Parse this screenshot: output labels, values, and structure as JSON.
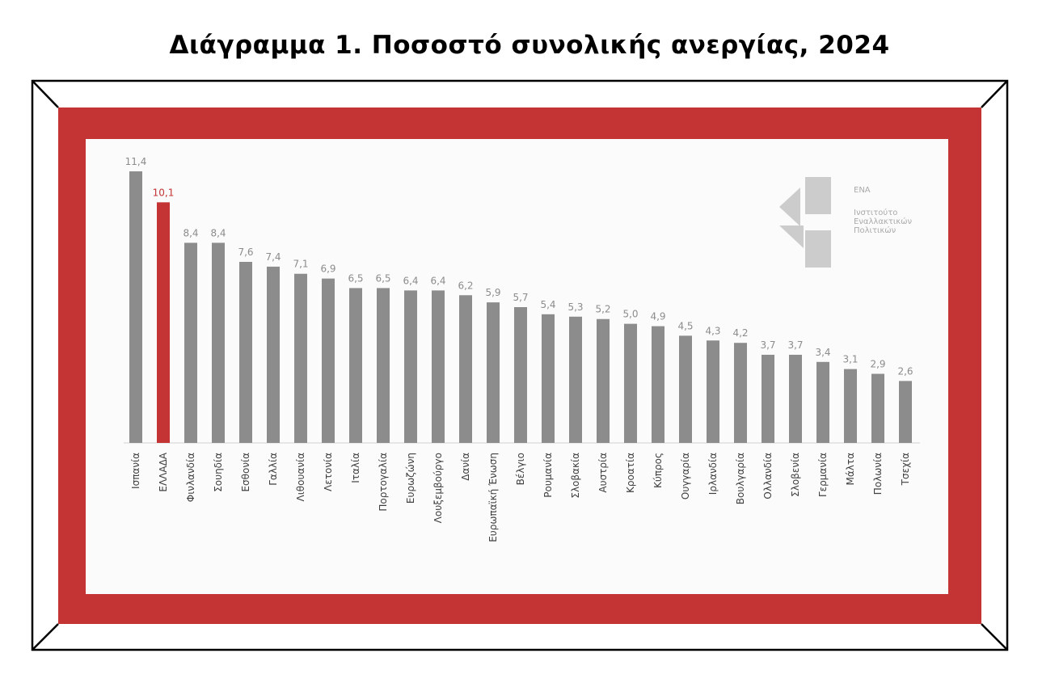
{
  "title": "Διάγραμμα 1. Ποσοστό συνολικής ανεργίας, 2024",
  "colors": {
    "frame_red": "#c43434",
    "bar_default": "#8c8c8c",
    "bar_highlight": "#c43434",
    "label_default": "#8c8c8c",
    "label_highlight": "#c43434",
    "logo": "#cccccc"
  },
  "logo": {
    "icon": "ena-logo-icon",
    "brand": "ΕΝΑ",
    "line1": "Ινστιτούτο",
    "line2": "Εναλλακτικών",
    "line3": "Πολιτικών"
  },
  "chart_data": {
    "type": "bar",
    "highlight": "ΕΛΛΑΔΑ",
    "ylim": [
      0,
      11.4
    ],
    "categories": [
      "Ισπανία",
      "ΕΛΛΑΔΑ",
      "Φινλανδία",
      "Σουηδία",
      "Εσθονία",
      "Γαλλία",
      "Λιθουανία",
      "Λετονία",
      "Ιταλία",
      "Πορτογαλία",
      "Ευρωζώνη",
      "Λουξεμβούργο",
      "Δανία",
      "Ευρωπαϊκή Ένωση",
      "Βέλγιο",
      "Ρουμανία",
      "Σλοβακία",
      "Αυστρία",
      "Κροατία",
      "Κύπρος",
      "Ουγγαρία",
      "Ιρλανδία",
      "Βουλγαρία",
      "Ολλανδία",
      "Σλοβενία",
      "Γερμανία",
      "Μάλτα",
      "Πολωνία",
      "Τσεχία"
    ],
    "values": [
      11.4,
      10.1,
      8.4,
      8.4,
      7.6,
      7.4,
      7.1,
      6.9,
      6.5,
      6.5,
      6.4,
      6.4,
      6.2,
      5.9,
      5.7,
      5.4,
      5.3,
      5.2,
      5.0,
      4.9,
      4.5,
      4.3,
      4.2,
      3.7,
      3.7,
      3.4,
      3.1,
      2.9,
      2.6
    ],
    "value_labels": [
      "11,4",
      "10,1",
      "8,4",
      "8,4",
      "7,6",
      "7,4",
      "7,1",
      "6,9",
      "6,5",
      "6,5",
      "6,4",
      "6,4",
      "6,2",
      "5,9",
      "5,7",
      "5,4",
      "5,3",
      "5,2",
      "5,0",
      "4,9",
      "4,5",
      "4,3",
      "4,2",
      "3,7",
      "3,7",
      "3,4",
      "3,1",
      "2,9",
      "2,6"
    ]
  }
}
